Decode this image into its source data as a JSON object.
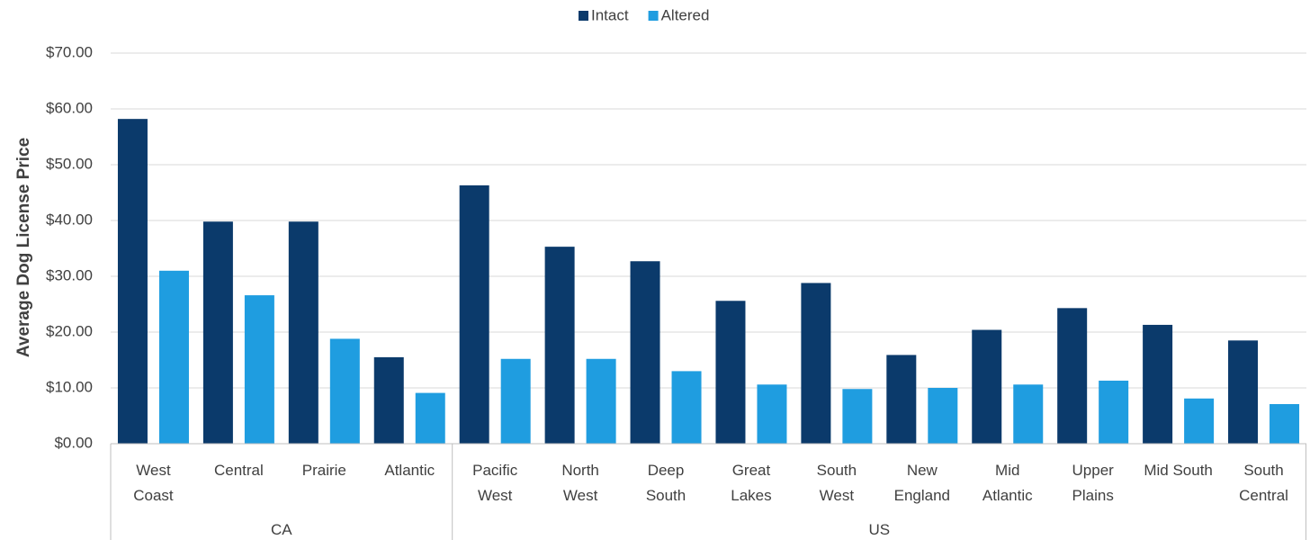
{
  "chart_data": {
    "type": "bar",
    "title": "",
    "xlabel": "",
    "ylabel": "Average Dog License Price",
    "ylim": [
      0,
      70
    ],
    "ytick_step": 10,
    "ytick_labels": [
      "$0.00",
      "$10.00",
      "$20.00",
      "$30.00",
      "$40.00",
      "$50.00",
      "$60.00",
      "$70.00"
    ],
    "grid": true,
    "legend_position": "top-center",
    "groups": [
      {
        "label": "CA",
        "categories": [
          "West Coast",
          "Central",
          "Prairie",
          "Atlantic"
        ]
      },
      {
        "label": "US",
        "categories": [
          "Pacific West",
          "North West",
          "Deep South",
          "Great Lakes",
          "South West",
          "New England",
          "Mid Atlantic",
          "Upper Plains",
          "Mid South",
          "South Central"
        ]
      }
    ],
    "categories": [
      [
        "West",
        "Coast"
      ],
      [
        "Central"
      ],
      [
        "Prairie"
      ],
      [
        "Atlantic"
      ],
      [
        "Pacific",
        "West"
      ],
      [
        "North",
        "West"
      ],
      [
        "Deep",
        "South"
      ],
      [
        "Great",
        "Lakes"
      ],
      [
        "South",
        "West"
      ],
      [
        "New",
        "England"
      ],
      [
        "Mid",
        "Atlantic"
      ],
      [
        "Upper",
        "Plains"
      ],
      [
        "Mid South"
      ],
      [
        "South",
        "Central"
      ]
    ],
    "series": [
      {
        "name": "Intact",
        "color": "#0b3a6b",
        "values": [
          58.2,
          39.8,
          39.8,
          15.5,
          46.3,
          35.3,
          32.7,
          25.6,
          28.8,
          15.9,
          20.4,
          24.3,
          21.3,
          18.5
        ]
      },
      {
        "name": "Altered",
        "color": "#1f9de0",
        "values": [
          31.0,
          26.6,
          18.8,
          9.1,
          15.2,
          15.2,
          13.0,
          10.6,
          9.8,
          10.0,
          10.6,
          11.3,
          8.1,
          7.1
        ]
      }
    ]
  }
}
